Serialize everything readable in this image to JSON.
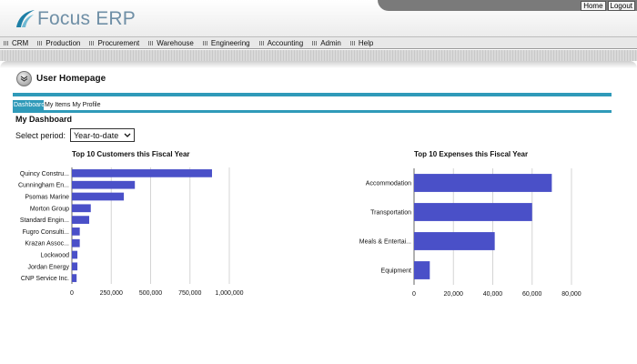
{
  "header": {
    "logo_text": "Focus ERP",
    "links": [
      "Home",
      "Logout"
    ]
  },
  "menu": [
    "CRM",
    "Production",
    "Procurement",
    "Warehouse",
    "Engineering",
    "Accounting",
    "Admin",
    "Help"
  ],
  "page": {
    "title": "User Homepage",
    "tabs": [
      "Dashboard",
      "My Items",
      "My Profile"
    ],
    "active_tab": "Dashboard",
    "section_title": "My Dashboard",
    "period_label": "Select period:",
    "period_value": "Year-to-date"
  },
  "colors": {
    "bar": "#4a50c8",
    "accent": "#2f9ab9",
    "logo": "#6f8fa6"
  },
  "icons": [
    "logo-swoosh-icon",
    "collapse-chevron-icon",
    "select-chevron-icon",
    "menu-grip-icon"
  ],
  "chart_data": [
    {
      "type": "bar",
      "orientation": "horizontal",
      "title": "Top 10 Customers this Fiscal Year",
      "categories": [
        "Quincy Constru...",
        "Cunningham En...",
        "Psomas Marine",
        "Morton Group",
        "Standard Engin...",
        "Fugro Consulti...",
        "Krazan Assoc...",
        "Lockwood",
        "Jordan Energy",
        "CNP Service Inc."
      ],
      "values": [
        890000,
        400000,
        330000,
        120000,
        110000,
        50000,
        50000,
        35000,
        35000,
        30000
      ],
      "xlim": [
        0,
        1000000
      ],
      "ticks": [
        "0",
        "250,000",
        "500,000",
        "750,000",
        "1,000,000"
      ],
      "tick_values": [
        0,
        250000,
        500000,
        750000,
        1000000
      ],
      "grid": true
    },
    {
      "type": "bar",
      "orientation": "horizontal",
      "title": "Top 10 Expenses this Fiscal Year",
      "categories": [
        "Accommodation",
        "Transportation",
        "Meals & Entertai...",
        "Equipment"
      ],
      "values": [
        70000,
        60000,
        41000,
        8000
      ],
      "xlim": [
        0,
        80000
      ],
      "ticks": [
        "0",
        "20,000",
        "40,000",
        "60,000",
        "80,000"
      ],
      "tick_values": [
        0,
        20000,
        40000,
        60000,
        80000
      ],
      "grid": true
    }
  ]
}
